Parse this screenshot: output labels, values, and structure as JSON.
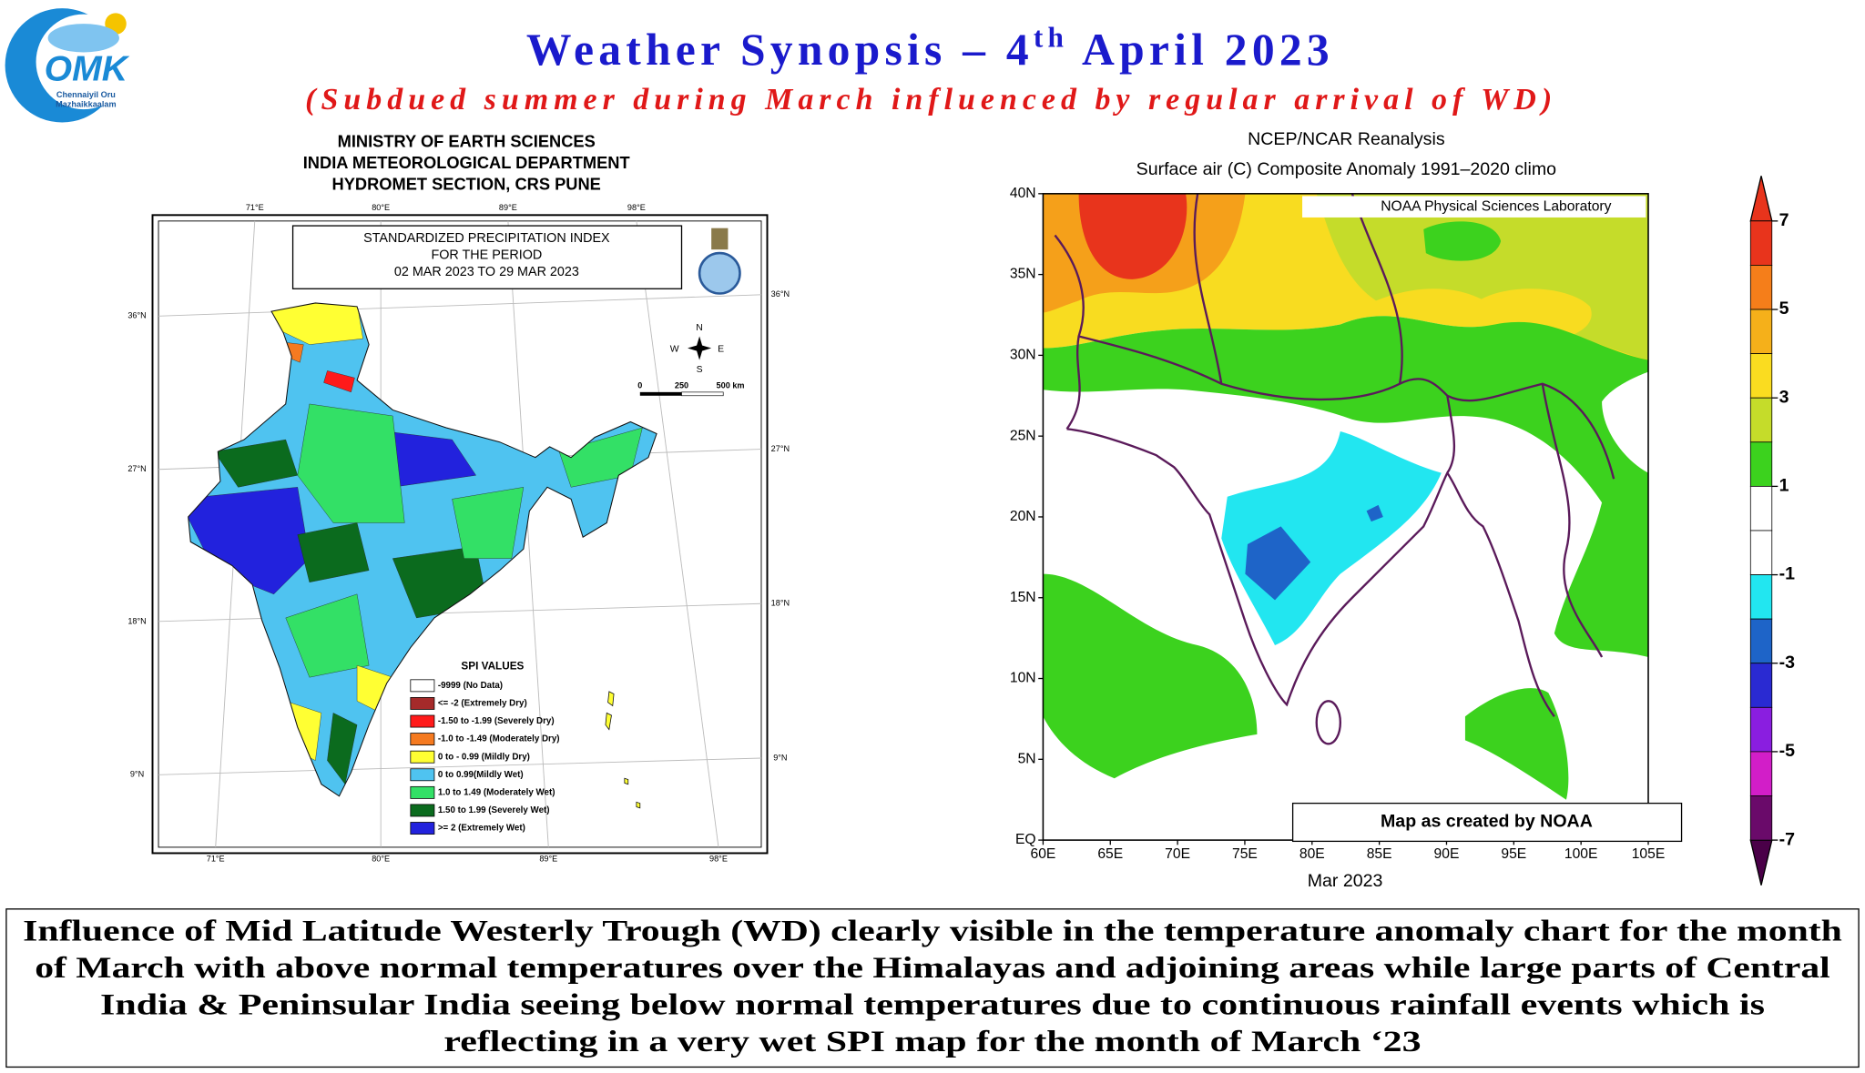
{
  "logo": {
    "mark": "OMK",
    "caption": [
      "Chennaiyil Oru",
      "Mazhaikkaalam"
    ]
  },
  "header": {
    "title": [
      "Weather Synopsis – 4",
      "th",
      " April 2023"
    ],
    "subtitle": "(Subdued summer during March influenced by regular arrival of WD)"
  },
  "spi_map": {
    "header": [
      "MINISTRY OF EARTH SCIENCES",
      "INDIA METEOROLOGICAL DEPARTMENT",
      "HYDROMET SECTION, CRS PUNE"
    ],
    "box": [
      "STANDARDIZED PRECIPITATION INDEX",
      "FOR THE PERIOD",
      "02 MAR 2023 TO 29 MAR 2023"
    ],
    "lon_labels": [
      "71°E",
      "80°E",
      "89°E",
      "98°E"
    ],
    "lat_labels": [
      "36°N",
      "27°N",
      "18°N",
      "9°N"
    ],
    "compass": {
      "n": "N",
      "s": "S",
      "e": "E",
      "w": "W"
    },
    "scale": [
      "0",
      "250",
      "500 km"
    ],
    "legend": {
      "title": "SPI VALUES",
      "items": [
        {
          "label": "-9999 (No Data)",
          "color": "#ffffff"
        },
        {
          "label": "<= -2 (Extremely Dry)",
          "color": "#a52a2a"
        },
        {
          "label": "-1.50 to -1.99 (Severely Dry)",
          "color": "#ff1a1a"
        },
        {
          "label": "-1.0 to -1.49 (Moderately Dry)",
          "color": "#f57a20"
        },
        {
          "label": "0 to - 0.99 (Mildly Dry)",
          "color": "#ffff33"
        },
        {
          "label": "0 to 0.99(Mildly Wet)",
          "color": "#4fc3f0"
        },
        {
          "label": "1.0 to 1.49 (Moderately Wet)",
          "color": "#33e066"
        },
        {
          "label": "1.50 to 1.99 (Severely Wet)",
          "color": "#0b6b1e"
        },
        {
          "label": ">= 2 (Extremely Wet)",
          "color": "#2222dd"
        }
      ]
    }
  },
  "anomaly_map": {
    "title": [
      "NCEP/NCAR Reanalysis",
      "Surface air (C) Composite Anomaly 1991–2020 climo"
    ],
    "credit": "NOAA Physical Sciences Laboratory",
    "lat_labels": [
      "40N",
      "35N",
      "30N",
      "25N",
      "20N",
      "15N",
      "10N",
      "5N",
      "EQ"
    ],
    "lon_labels": [
      "60E",
      "65E",
      "70E",
      "75E",
      "80E",
      "85E",
      "90E",
      "95E",
      "100E",
      "105E"
    ],
    "x_title": "Mar 2023",
    "note": "Map as created by NOAA",
    "colorbar": {
      "ticks": [
        7,
        5,
        3,
        1,
        -1,
        -3,
        -5,
        -7
      ]
    }
  },
  "footer": {
    "lines": [
      "Influence of Mid Latitude Westerly Trough (WD) clearly visible in the temperature anomaly chart for the month",
      "of March with above normal temperatures over the Himalayas and adjoining areas while large parts of Central",
      "India & Peninsular India seeing below normal temperatures due to continuous rainfall events which is",
      "reflecting in a very wet SPI map for the month of March ‘23"
    ]
  }
}
